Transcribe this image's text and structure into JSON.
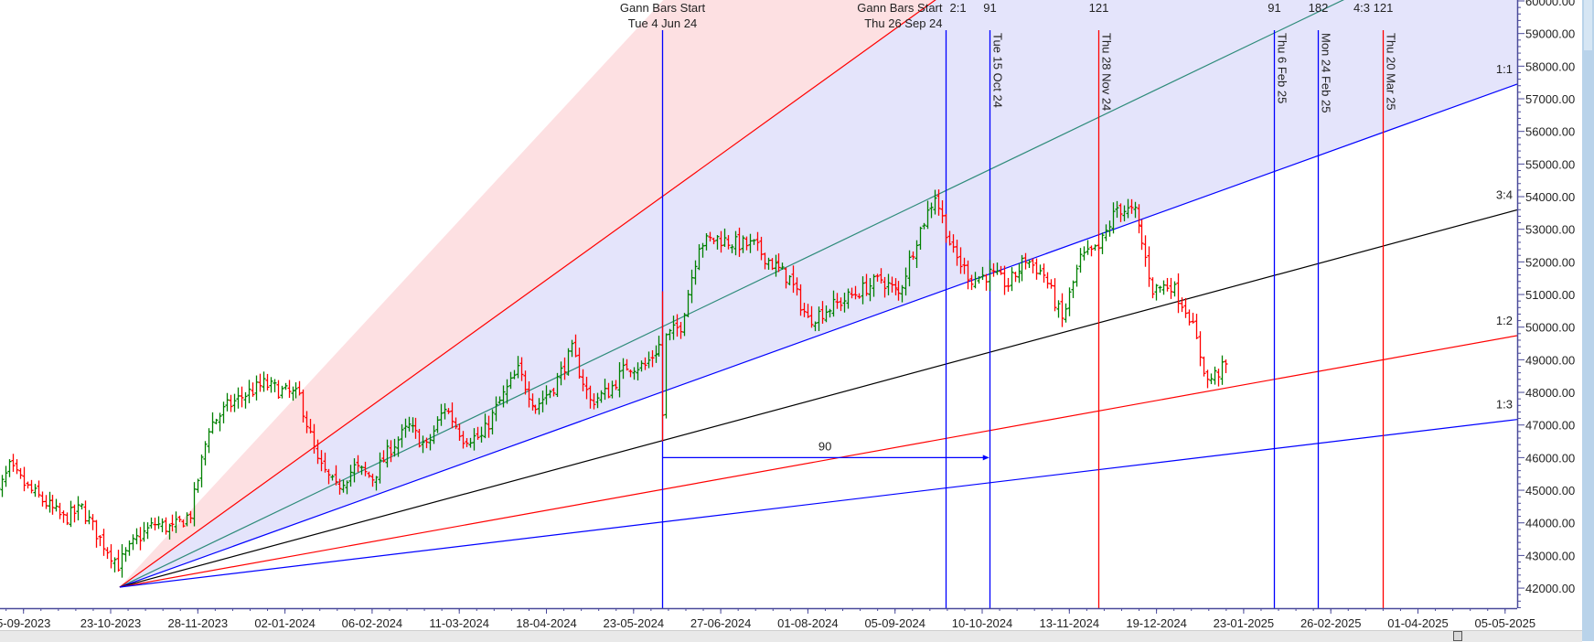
{
  "chart_data": {
    "type": "ohlc",
    "title": "",
    "xlabel": "",
    "ylabel": "",
    "x_tick_labels": [
      "5-09-2023",
      "23-10-2023",
      "28-11-2023",
      "02-01-2024",
      "06-02-2024",
      "11-03-2024",
      "18-04-2024",
      "23-05-2024",
      "27-06-2024",
      "01-08-2024",
      "05-09-2024",
      "10-10-2024",
      "13-11-2024",
      "19-12-2024",
      "23-01-2025",
      "26-02-2025",
      "01-04-2025",
      "05-05-2025"
    ],
    "y_tick_labels": [
      "60000.00",
      "59000.00",
      "58000.00",
      "57000.00",
      "56000.00",
      "55000.00",
      "54000.00",
      "53000.00",
      "52000.00",
      "51000.00",
      "50000.00",
      "49000.00",
      "48000.00",
      "47000.00",
      "46000.00",
      "45000.00",
      "44000.00",
      "43000.00",
      "42000.00"
    ],
    "ylim": [
      41350,
      60000
    ],
    "weekly_close_first_date": "05-09-2023",
    "weekly_close": [
      44440,
      45690,
      45060,
      44600,
      44120,
      44440,
      43500,
      42720,
      43500,
      43970,
      43810,
      44280,
      46940,
      47560,
      47940,
      48250,
      48030,
      47880,
      45840,
      45060,
      45690,
      45380,
      46310,
      46940,
      46310,
      47560,
      46620,
      46620,
      47720,
      48660,
      47560,
      48190,
      49280,
      47720,
      48030,
      48810,
      48810,
      49590,
      50060,
      52560,
      52720,
      52560,
      52500,
      51940,
      51470,
      50220,
      50530,
      50840,
      51160,
      51470,
      51000,
      52720,
      54060,
      52250,
      51470,
      51620,
      51310,
      52090,
      51620,
      50220,
      52090,
      52400,
      53660,
      53500,
      51160,
      51310,
      50370,
      48340,
      48810
    ],
    "notable_bar": {
      "date": "04-06-2024",
      "high": 51100,
      "low": 46500,
      "close": 47300
    },
    "colors": {
      "up": "#008000",
      "down": "#ff0000",
      "fan_fill_blue": "#e4e4fb",
      "fan_fill_pink": "#fde0e2"
    },
    "gann_fan": {
      "origin": {
        "date": "26-10-2023",
        "price": 42030
      },
      "lines": [
        {
          "label": "2:1",
          "factor": 2,
          "color": "#ff0000"
        },
        {
          "label": "4:3",
          "factor": 1.3333,
          "color": "#2e8b7a"
        },
        {
          "label": "1:1",
          "factor": 1,
          "color": "#0000ff",
          "end_price": 57450
        },
        {
          "label": "3:4",
          "factor": 0.75,
          "color": "#000000"
        },
        {
          "label": "1:2",
          "factor": 0.5,
          "color": "#ff0000"
        },
        {
          "label": "1:3",
          "factor": 0.3333,
          "color": "#0000ff"
        }
      ]
    },
    "vertical_lines": [
      {
        "date": "04-06-2024",
        "label": "Tue 4 Jun 24",
        "title": "Gann Bars Start",
        "color": "#0000ff"
      },
      {
        "date": "26-09-2024",
        "label": "Thu 26 Sep 24",
        "title": "Gann Bars Start",
        "color": "#0000ff",
        "count": "2:1"
      },
      {
        "date": "15-10-2024",
        "label": "Tue 15 Oct 24",
        "color": "#0000ff",
        "count": "91"
      },
      {
        "date": "28-11-2024",
        "label": "Thu 28 Nov 24",
        "color": "#ff0000",
        "count": "121"
      },
      {
        "date": "06-02-2025",
        "label": "Thu 6 Feb 25",
        "color": "#0000ff",
        "count": "91"
      },
      {
        "date": "24-02-2025",
        "label": "Mon 24 Feb 25",
        "color": "#0000ff",
        "count": "182"
      },
      {
        "date": "20-03-2025",
        "label": "Thu 20 Mar 25",
        "color": "#ff0000",
        "count": "121"
      }
    ],
    "extra_labels": {
      "ratio_43": "4:3"
    },
    "bar_count_arrow": {
      "from": "04-06-2024",
      "to": "15-10-2024",
      "label": "90",
      "price": 46000
    }
  }
}
